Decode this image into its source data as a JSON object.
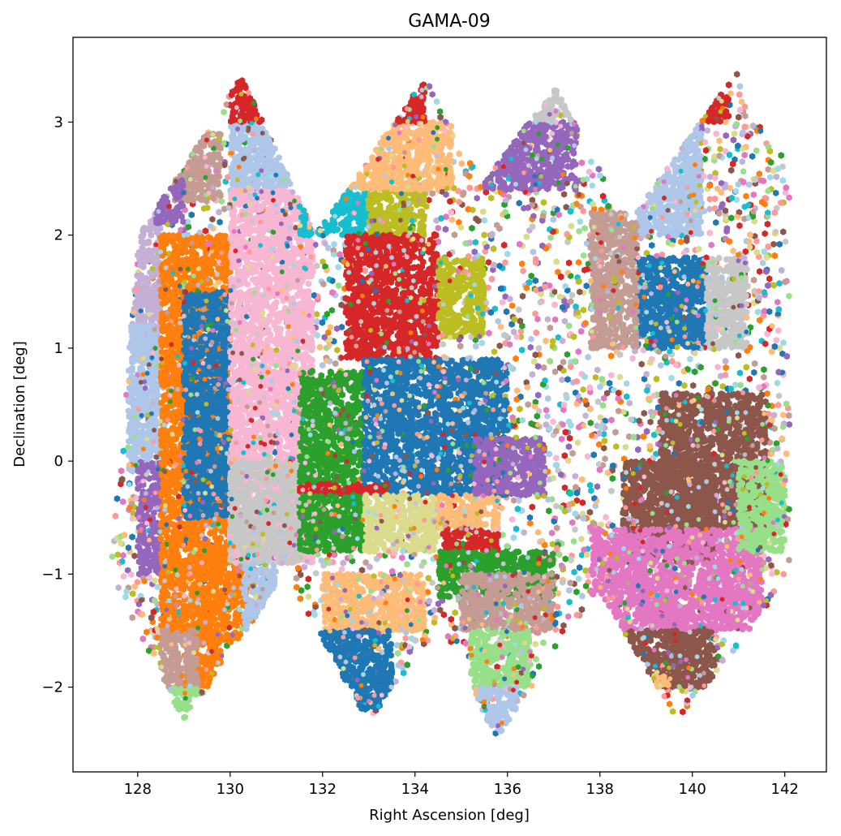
{
  "chart_data": {
    "type": "scatter",
    "title": "GAMA-09",
    "xlabel": "Right Ascension [deg]",
    "ylabel": "Declination [deg]",
    "xlim": [
      126.6,
      142.9
    ],
    "ylim": [
      -2.75,
      3.75
    ],
    "x_ticks": [
      128,
      130,
      132,
      134,
      136,
      138,
      140,
      142
    ],
    "y_ticks": [
      -2,
      -1,
      0,
      1,
      2,
      3
    ],
    "grid": false,
    "legend": "none",
    "marker": "hexagon",
    "palette": [
      "#1f77b4",
      "#aec7e8",
      "#ff7f0e",
      "#ffbb78",
      "#2ca02c",
      "#98df8a",
      "#d62728",
      "#ff9896",
      "#9467bd",
      "#c5b0d5",
      "#8c564b",
      "#c49c94",
      "#e377c2",
      "#f7b6d2",
      "#c7c7c7",
      "#bcbd22",
      "#dbdb8d",
      "#17becf",
      "#9edae5"
    ],
    "series": [
      {
        "color": "#c5b0d5",
        "ra": [
          127.3,
          128.5
        ],
        "dec": [
          0.9,
          2.3
        ]
      },
      {
        "color": "#aec7e8",
        "ra": [
          127.8,
          128.5
        ],
        "dec": [
          -0.1,
          1.2
        ]
      },
      {
        "color": "#9467bd",
        "ra": [
          128.0,
          128.5
        ],
        "dec": [
          -1.0,
          0.0
        ]
      },
      {
        "color": "#c49c94",
        "ra": [
          128.8,
          129.8
        ],
        "dec": [
          2.3,
          2.9
        ]
      },
      {
        "color": "#9467bd",
        "ra": [
          128.4,
          129.0
        ],
        "dec": [
          2.1,
          2.5
        ]
      },
      {
        "color": "#ff7f0e",
        "ra": [
          128.5,
          130.0
        ],
        "dec": [
          -0.9,
          2.0
        ]
      },
      {
        "color": "#1f77b4",
        "ra": [
          129.0,
          130.0
        ],
        "dec": [
          -0.5,
          1.5
        ]
      },
      {
        "color": "#ff7f0e",
        "ra": [
          128.5,
          130.5
        ],
        "dec": [
          -1.6,
          -0.9
        ]
      },
      {
        "color": "#ff7f0e",
        "ra": [
          129.0,
          129.8
        ],
        "dec": [
          -2.0,
          -1.5
        ]
      },
      {
        "color": "#c49c94",
        "ra": [
          128.5,
          129.3
        ],
        "dec": [
          -2.0,
          -1.5
        ]
      },
      {
        "color": "#98df8a",
        "ra": [
          128.6,
          129.4
        ],
        "dec": [
          -2.3,
          -2.0
        ]
      },
      {
        "color": "#aec7e8",
        "ra": [
          130.0,
          131.3
        ],
        "dec": [
          2.3,
          3.0
        ]
      },
      {
        "color": "#d62728",
        "ra": [
          130.0,
          131.3
        ],
        "dec": [
          3.0,
          3.4
        ]
      },
      {
        "color": "#f7b6d2",
        "ra": [
          130.0,
          131.8
        ],
        "dec": [
          -0.9,
          2.4
        ]
      },
      {
        "color": "#c7c7c7",
        "ra": [
          130.0,
          131.5
        ],
        "dec": [
          -0.9,
          0.0
        ]
      },
      {
        "color": "#aec7e8",
        "ra": [
          130.3,
          131.0
        ],
        "dec": [
          -1.5,
          -0.9
        ]
      },
      {
        "color": "#17becf",
        "ra": [
          131.5,
          133.0
        ],
        "dec": [
          2.0,
          2.4
        ]
      },
      {
        "color": "#bcbd22",
        "ra": [
          133.0,
          134.2
        ],
        "dec": [
          2.0,
          2.4
        ]
      },
      {
        "color": "#ffbb78",
        "ra": [
          132.0,
          134.8
        ],
        "dec": [
          2.4,
          3.0
        ]
      },
      {
        "color": "#d62728",
        "ra": [
          132.8,
          134.2
        ],
        "dec": [
          3.0,
          3.4
        ]
      },
      {
        "color": "#d62728",
        "ra": [
          132.5,
          134.5
        ],
        "dec": [
          0.9,
          2.0
        ]
      },
      {
        "color": "#bcbd22",
        "ra": [
          134.5,
          135.5
        ],
        "dec": [
          1.1,
          1.8
        ]
      },
      {
        "color": "#2ca02c",
        "ra": [
          131.5,
          132.9
        ],
        "dec": [
          -0.2,
          0.8
        ]
      },
      {
        "color": "#1f77b4",
        "ra": [
          132.9,
          136.0
        ],
        "dec": [
          -0.3,
          0.9
        ]
      },
      {
        "color": "#d62728",
        "ra": [
          131.5,
          133.5
        ],
        "dec": [
          -0.3,
          -0.2
        ]
      },
      {
        "color": "#2ca02c",
        "ra": [
          131.5,
          132.9
        ],
        "dec": [
          -0.8,
          -0.3
        ]
      },
      {
        "color": "#dbdb8d",
        "ra": [
          132.9,
          134.5
        ],
        "dec": [
          -0.8,
          -0.3
        ]
      },
      {
        "color": "#ffbb78",
        "ra": [
          134.5,
          135.8
        ],
        "dec": [
          -0.6,
          -0.3
        ]
      },
      {
        "color": "#d62728",
        "ra": [
          134.6,
          135.8
        ],
        "dec": [
          -0.8,
          -0.6
        ]
      },
      {
        "color": "#2ca02c",
        "ra": [
          134.5,
          137.0
        ],
        "dec": [
          -1.2,
          -0.8
        ]
      },
      {
        "color": "#ffbb78",
        "ra": [
          132.0,
          134.2
        ],
        "dec": [
          -1.5,
          -1.0
        ]
      },
      {
        "color": "#1f77b4",
        "ra": [
          131.7,
          133.5
        ],
        "dec": [
          -2.2,
          -1.5
        ]
      },
      {
        "color": "#c49c94",
        "ra": [
          135.0,
          137.0
        ],
        "dec": [
          -1.5,
          -1.0
        ]
      },
      {
        "color": "#98df8a",
        "ra": [
          135.2,
          136.5
        ],
        "dec": [
          -2.0,
          -1.5
        ]
      },
      {
        "color": "#aec7e8",
        "ra": [
          135.3,
          136.2
        ],
        "dec": [
          -2.4,
          -2.0
        ]
      },
      {
        "color": "#9467bd",
        "ra": [
          135.5,
          137.5
        ],
        "dec": [
          2.4,
          3.0
        ]
      },
      {
        "color": "#c7c7c7",
        "ra": [
          136.5,
          137.5
        ],
        "dec": [
          3.0,
          3.3
        ]
      },
      {
        "color": "#9467bd",
        "ra": [
          135.3,
          136.8
        ],
        "dec": [
          -0.3,
          0.2
        ]
      },
      {
        "color": "#aec7e8",
        "ra": [
          138.8,
          140.2
        ],
        "dec": [
          2.0,
          3.0
        ]
      },
      {
        "color": "#d62728",
        "ra": [
          139.4,
          140.8
        ],
        "dec": [
          3.0,
          3.4
        ]
      },
      {
        "color": "#1f77b4",
        "ra": [
          138.8,
          140.3
        ],
        "dec": [
          1.0,
          1.8
        ]
      },
      {
        "color": "#c7c7c7",
        "ra": [
          140.3,
          141.2
        ],
        "dec": [
          1.0,
          1.8
        ]
      },
      {
        "color": "#c49c94",
        "ra": [
          137.8,
          138.8
        ],
        "dec": [
          1.0,
          2.2
        ]
      },
      {
        "color": "#8c564b",
        "ra": [
          139.3,
          141.6
        ],
        "dec": [
          -0.6,
          0.6
        ]
      },
      {
        "color": "#8c564b",
        "ra": [
          138.5,
          140.5
        ],
        "dec": [
          -0.9,
          0.0
        ]
      },
      {
        "color": "#e377c2",
        "ra": [
          137.8,
          141.5
        ],
        "dec": [
          -1.5,
          -0.6
        ]
      },
      {
        "color": "#8c564b",
        "ra": [
          138.5,
          140.5
        ],
        "dec": [
          -2.0,
          -1.5
        ]
      },
      {
        "color": "#98df8a",
        "ra": [
          141.0,
          142.0
        ],
        "dec": [
          -0.8,
          0.0
        ]
      },
      {
        "color": "#ffbb78",
        "ra": [
          138.5,
          139.5
        ],
        "dec": [
          -2.0,
          -1.9
        ]
      }
    ]
  }
}
